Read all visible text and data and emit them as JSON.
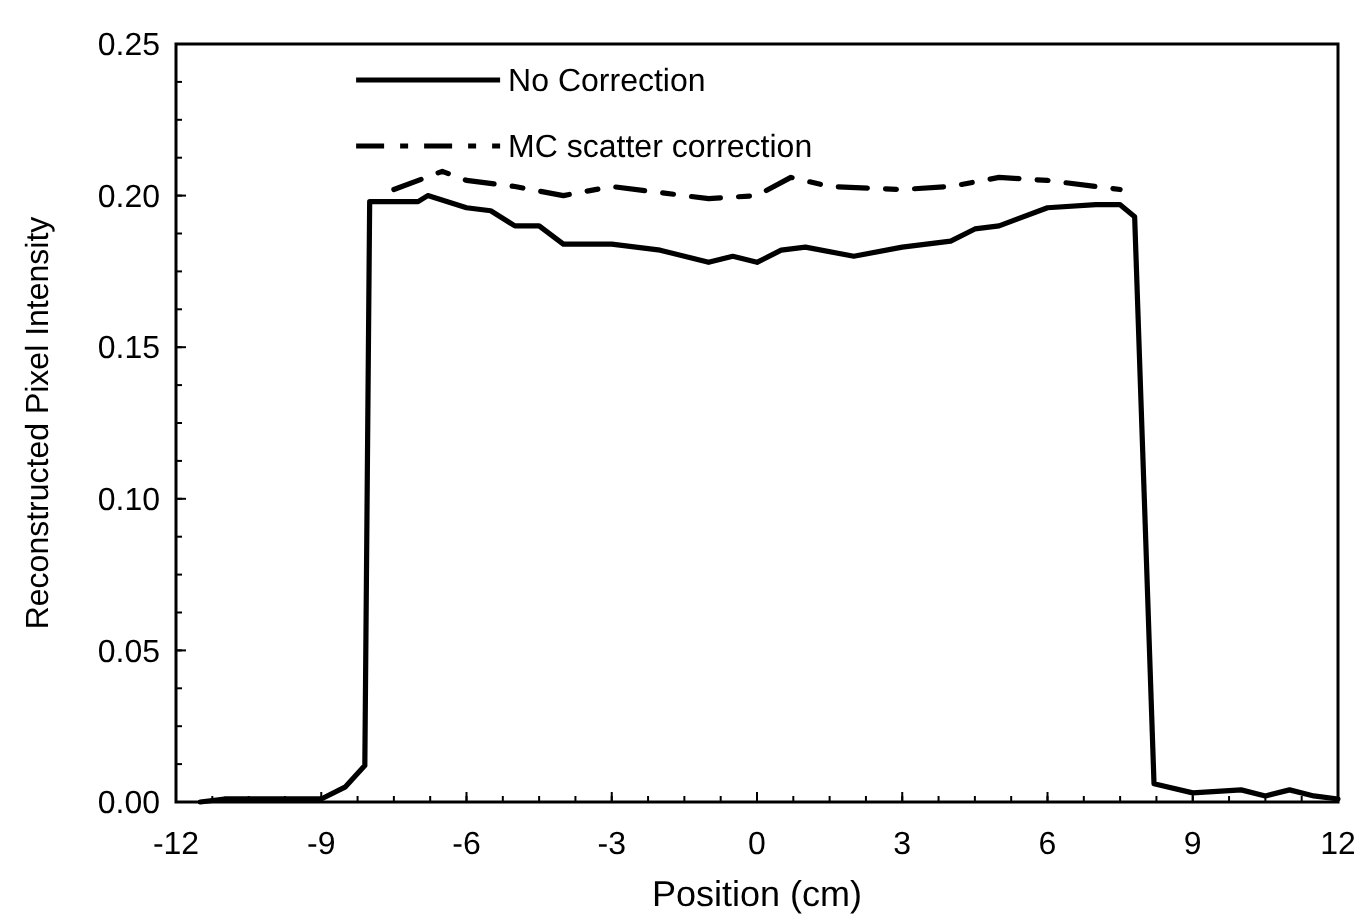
{
  "chart_data": {
    "type": "line",
    "xlabel": "Position (cm)",
    "ylabel": "Reconstructed Pixel Intensity",
    "xlim": [
      -12,
      12
    ],
    "xticks": [
      -12,
      -9,
      -6,
      -3,
      0,
      3,
      6,
      9,
      12
    ],
    "ylim": [
      0,
      0.25
    ],
    "yticks": [
      {
        "value": 0,
        "label": "0.00"
      },
      {
        "value": 0.05,
        "label": "0.05"
      },
      {
        "value": 0.1,
        "label": "0.10"
      },
      {
        "value": 0.15,
        "label": "0.15"
      },
      {
        "value": 0.2,
        "label": "0.20"
      },
      {
        "value": 0.25,
        "label": "0.25"
      }
    ],
    "grid": false,
    "legend": "top left",
    "marker": "none",
    "series": [
      {
        "name": "No Correction",
        "color": "#000000",
        "line_style": "solid",
        "x": [
          -11.5,
          -11,
          -10,
          -9,
          -8.5,
          -8.1,
          -8,
          -7,
          -6.8,
          -6,
          -5.5,
          -5,
          -4.5,
          -4,
          -3,
          -2,
          -1,
          -0.5,
          0,
          0.5,
          1,
          2,
          3,
          4,
          4.5,
          5,
          6,
          7,
          7.5,
          7.8,
          8,
          8.2,
          9,
          10,
          10.5,
          11,
          11.5,
          12
        ],
        "values": [
          0,
          0.001,
          0.001,
          0.001,
          0.005,
          0.012,
          0.198,
          0.198,
          0.2,
          0.196,
          0.195,
          0.19,
          0.19,
          0.184,
          0.184,
          0.182,
          0.178,
          0.18,
          0.178,
          0.182,
          0.183,
          0.18,
          0.183,
          0.185,
          0.189,
          0.19,
          0.196,
          0.197,
          0.197,
          0.193,
          0.1,
          0.006,
          0.003,
          0.004,
          0.002,
          0.004,
          0.002,
          0.001
        ]
      },
      {
        "name": "MC scatter correction",
        "color": "#000000",
        "line_style": "dashed",
        "x": [
          -7.5,
          -6.5,
          -6,
          -5,
          -4,
          -3,
          -2,
          -1,
          0,
          0.7,
          1.5,
          3,
          4,
          5,
          6,
          7.5
        ],
        "values": [
          0.202,
          0.208,
          0.205,
          0.203,
          0.2,
          0.203,
          0.201,
          0.199,
          0.2,
          0.206,
          0.203,
          0.202,
          0.203,
          0.206,
          0.205,
          0.202
        ]
      }
    ]
  }
}
